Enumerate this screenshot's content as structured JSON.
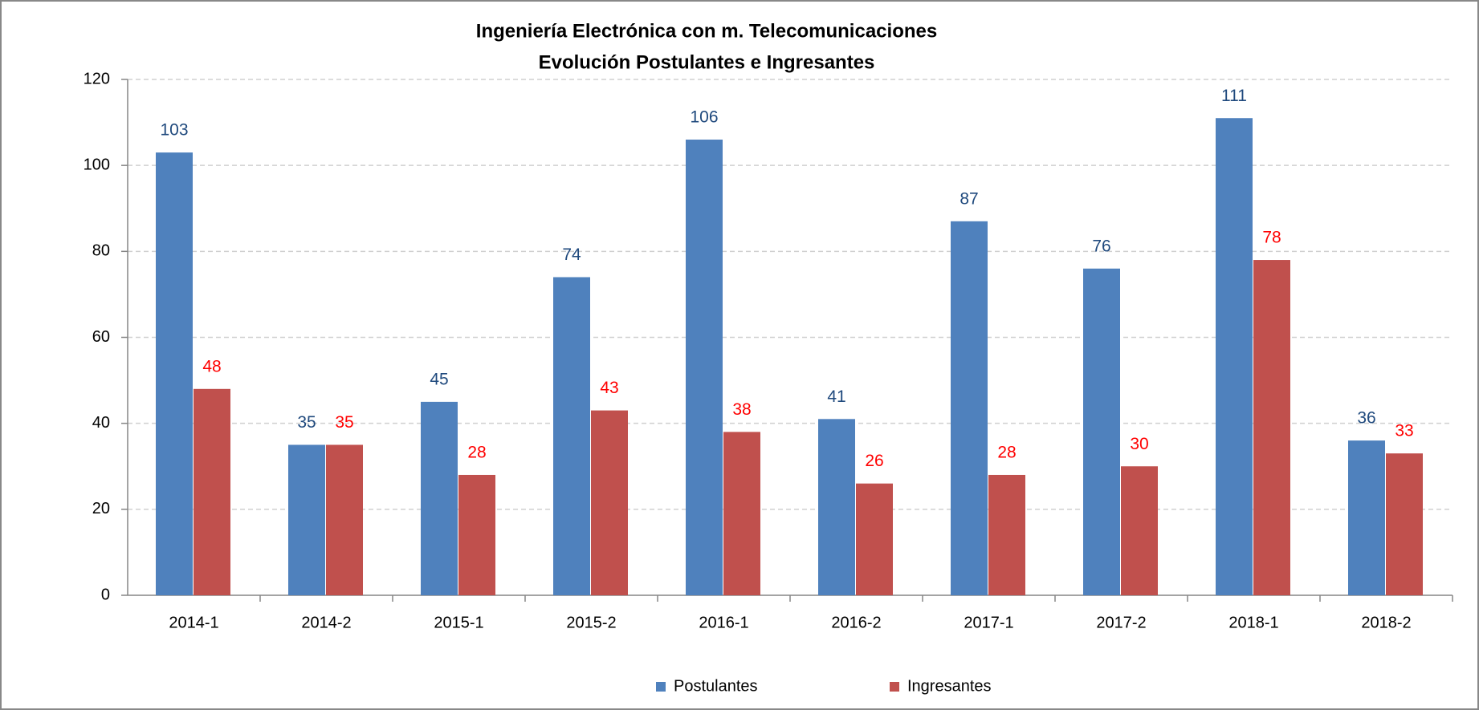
{
  "chart_data": {
    "type": "bar",
    "title": [
      "Ingeniería Electrónica con m. Telecomunicaciones",
      "Evolución Postulantes e Ingresantes"
    ],
    "categories": [
      "2014-1",
      "2014-2",
      "2015-1",
      "2015-2",
      "2016-1",
      "2016-2",
      "2017-1",
      "2017-2",
      "2018-1",
      "2018-2"
    ],
    "series": [
      {
        "name": "Postulantes",
        "color": "#4f81bd",
        "label_color": "#1f497d",
        "values": [
          103,
          35,
          45,
          74,
          106,
          41,
          87,
          76,
          111,
          36
        ]
      },
      {
        "name": "Ingresantes",
        "color": "#c0504d",
        "label_color": "#ff0000",
        "values": [
          48,
          35,
          28,
          43,
          38,
          26,
          28,
          30,
          78,
          33
        ]
      }
    ],
    "ylim": [
      0,
      120
    ],
    "yticks": [
      0,
      20,
      40,
      60,
      80,
      100,
      120
    ],
    "grid": true,
    "legend": "bottom"
  }
}
